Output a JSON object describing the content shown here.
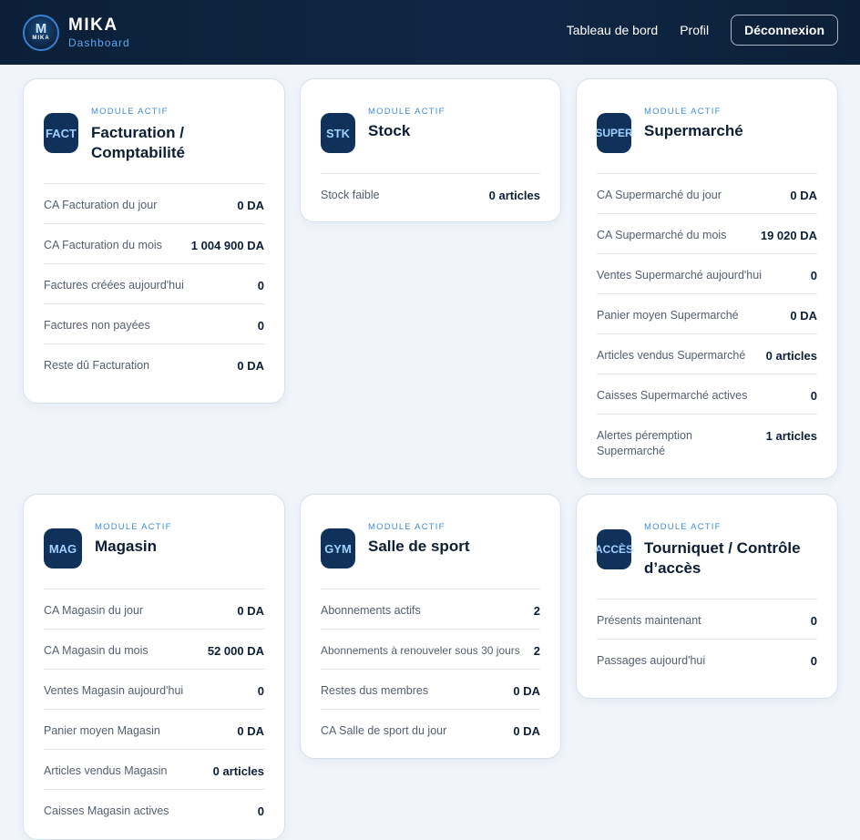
{
  "header": {
    "brand": "MIKA",
    "subtitle": "Dashboard",
    "logo_mark": "M",
    "logo_text": "MIKA",
    "nav": {
      "dashboard": "Tableau de bord",
      "profile": "Profil",
      "logout": "Déconnexion"
    }
  },
  "cards": {
    "fact": {
      "badge": "FACT",
      "label": "MODULE ACTIF",
      "title": "Facturation / Comptabilité",
      "rows": [
        {
          "label": "CA Facturation du jour",
          "value": "0 DA"
        },
        {
          "label": "CA Facturation du mois",
          "value": "1 004 900 DA"
        },
        {
          "label": "Factures créées aujourd'hui",
          "value": "0"
        },
        {
          "label": "Factures non payées",
          "value": "0"
        },
        {
          "label": "Reste dû Facturation",
          "value": "0 DA"
        }
      ]
    },
    "stk": {
      "badge": "STK",
      "label": "MODULE ACTIF",
      "title": "Stock",
      "rows": [
        {
          "label": "Stock faible",
          "value": "0 articles"
        }
      ]
    },
    "super": {
      "badge": "SUPER",
      "label": "MODULE ACTIF",
      "title": "Supermarché",
      "rows": [
        {
          "label": "CA Supermarché du jour",
          "value": "0 DA"
        },
        {
          "label": "CA Supermarché du mois",
          "value": "19 020 DA"
        },
        {
          "label": "Ventes Supermarché aujourd'hui",
          "value": "0"
        },
        {
          "label": "Panier moyen Supermarché",
          "value": "0 DA"
        },
        {
          "label": "Articles vendus Supermarché",
          "value": "0 articles"
        },
        {
          "label": "Caisses Supermarché actives",
          "value": "0"
        },
        {
          "label": "Alertes péremption Supermarché",
          "value": "1 articles"
        }
      ]
    },
    "mag": {
      "badge": "MAG",
      "label": "MODULE ACTIF",
      "title": "Magasin",
      "rows": [
        {
          "label": "CA Magasin du jour",
          "value": "0 DA"
        },
        {
          "label": "CA Magasin du mois",
          "value": "52 000 DA"
        },
        {
          "label": "Ventes Magasin aujourd'hui",
          "value": "0"
        },
        {
          "label": "Panier moyen Magasin",
          "value": "0 DA"
        },
        {
          "label": "Articles vendus Magasin",
          "value": "0 articles"
        },
        {
          "label": "Caisses Magasin actives",
          "value": "0"
        }
      ]
    },
    "gym": {
      "badge": "GYM",
      "label": "MODULE ACTIF",
      "title": "Salle de sport",
      "rows": [
        {
          "label": "Abonnements actifs",
          "value": "2"
        },
        {
          "label": "Abonnements à renouveler sous 30 jours",
          "value": "2"
        },
        {
          "label": "Restes dus membres",
          "value": "0 DA"
        },
        {
          "label": "CA Salle de sport du jour",
          "value": "0 DA"
        }
      ]
    },
    "acces": {
      "badge": "ACCÈS",
      "label": "MODULE ACTIF",
      "title": "Tourniquet / Contrôle d’accès",
      "rows": [
        {
          "label": "Présents maintenant",
          "value": "0"
        },
        {
          "label": "Passages aujourd'hui",
          "value": "0"
        }
      ]
    }
  },
  "colors": {
    "header_bg": "#0b1f38",
    "badge_bg": "#10325a",
    "badge_text": "#9fd0ff",
    "accent": "#3f8fd6"
  }
}
